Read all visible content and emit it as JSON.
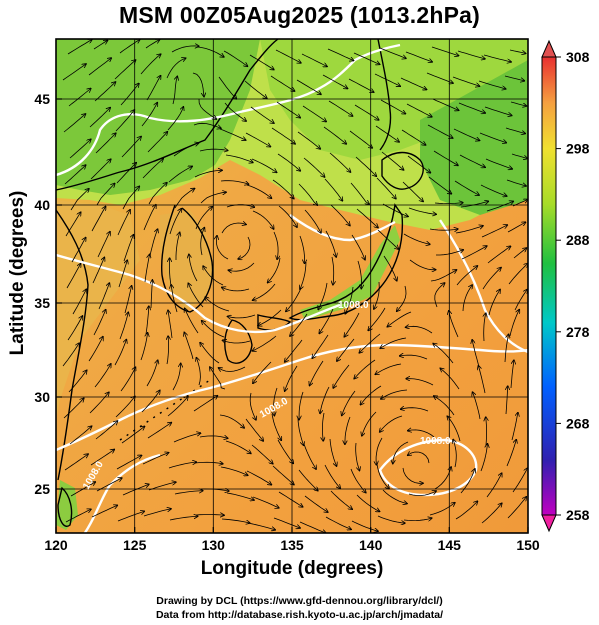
{
  "title": "MSM 00Z05Aug2025 (1013.2hPa)",
  "map": {
    "xlabel": "Longitude (degrees)",
    "ylabel": "Latitude  (degrees)",
    "lon_range": [
      120,
      150
    ],
    "lat_range": [
      22.4,
      47.6
    ],
    "x_ticks": [
      "120",
      "125",
      "130",
      "135",
      "140",
      "145",
      "150"
    ],
    "y_ticks": [
      "25",
      "30",
      "35",
      "40",
      "45"
    ],
    "contour_labels": [
      "1008.0",
      "1008.0",
      "1008.0",
      "1008.0"
    ]
  },
  "colorbar": {
    "max_label": "308",
    "min_label": "258",
    "tick_labels": [
      "308",
      "298",
      "288",
      "278",
      "268",
      "258"
    ],
    "range": [
      258,
      308
    ]
  },
  "credits": {
    "line1": "Drawing by DCL (https://www.gfd-dennou.org/library/dcl/)",
    "line2": "Data from http://database.rish.kyoto-u.ac.jp/arch/jmadata/"
  },
  "colors": {
    "ocean": "#f0a040",
    "land_green": "#7cc83a",
    "land_yellow": "#dde63a",
    "contour": "#ffffff",
    "streamline": "#000000"
  }
}
